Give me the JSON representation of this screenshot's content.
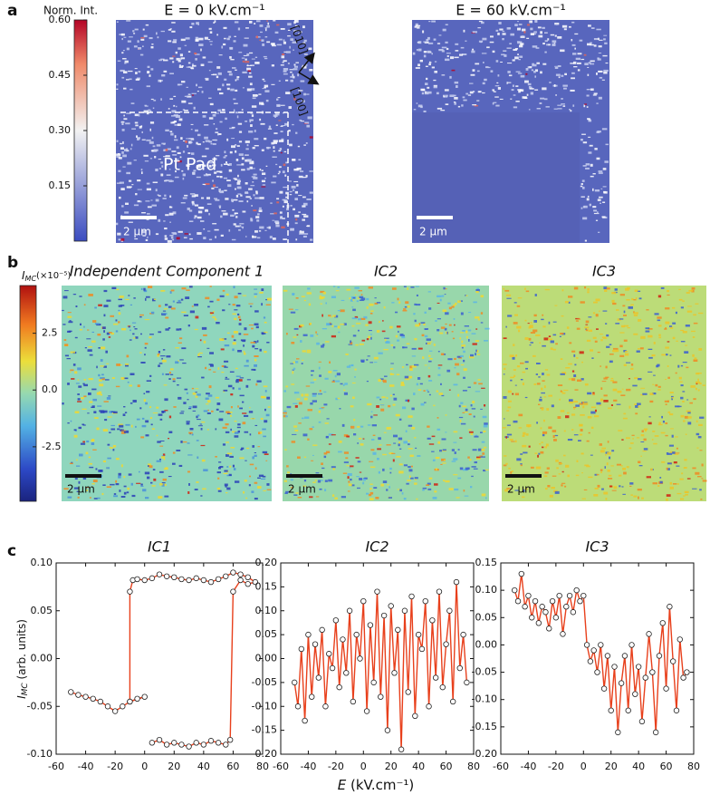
{
  "panel_labels": [
    "a",
    "b",
    "c"
  ],
  "panel_a": {
    "colorbar": {
      "title": "Norm. Int.",
      "lim": [
        0,
        0.6
      ],
      "ticks": [
        0.15,
        {
          "value": 0.3,
          "label": "0.30"
        },
        0.45,
        {
          "value": 0.6,
          "label": "0.60"
        }
      ]
    },
    "images": [
      {
        "title": "E = 0 kV.cm⁻¹",
        "scale_bar": "2 µm",
        "pad_label": "Pt Pad",
        "direction_1": "[010]",
        "direction_2": "[100]"
      },
      {
        "title": "E = 60 kV.cm⁻¹",
        "scale_bar": "2 µm"
      }
    ]
  },
  "panel_b": {
    "colorbar": {
      "symbol": "I",
      "subscript": "MC",
      "factor": "(×10⁻⁵)",
      "lim": [
        -4.9,
        4.6
      ],
      "ticks": [
        2.5,
        {
          "value": 0,
          "label": "0.0"
        },
        -2.5
      ]
    },
    "images": [
      {
        "title": "Independent Component 1",
        "scale_bar": "2 µm"
      },
      {
        "title": "IC2",
        "scale_bar": "2 µm"
      },
      {
        "title": "IC3",
        "scale_bar": "2 µm"
      }
    ]
  },
  "chart_data": [
    {
      "type": "line",
      "title": "IC1",
      "color": "#e8401c",
      "ylabel": {
        "symbol": "I",
        "subscript": "MC",
        "unit": " (arb. units)"
      },
      "x": [
        -50,
        -45,
        -40,
        -35,
        -30,
        -25,
        -20,
        -15,
        -10,
        -5,
        0,
        -10,
        -10,
        -8,
        -5,
        0,
        5,
        10,
        15,
        20,
        25,
        30,
        35,
        40,
        45,
        50,
        55,
        60,
        65,
        70,
        75,
        70,
        65,
        60,
        58,
        55,
        50,
        45,
        40,
        35,
        30,
        25,
        20,
        15,
        10,
        5
      ],
      "values": [
        -0.035,
        -0.038,
        -0.04,
        -0.042,
        -0.045,
        -0.05,
        -0.055,
        -0.05,
        -0.045,
        -0.042,
        -0.04,
        -0.045,
        0.07,
        0.082,
        0.083,
        0.082,
        0.084,
        0.088,
        0.086,
        0.085,
        0.083,
        0.082,
        0.084,
        0.082,
        0.08,
        0.083,
        0.086,
        0.09,
        0.088,
        0.085,
        0.08,
        0.078,
        0.082,
        0.07,
        -0.085,
        -0.09,
        -0.088,
        -0.086,
        -0.09,
        -0.088,
        -0.092,
        -0.09,
        -0.088,
        -0.09,
        -0.085,
        -0.088
      ],
      "xlim": [
        -60,
        80
      ],
      "xticks": [
        -60,
        -40,
        -20,
        0,
        20,
        40,
        60,
        80
      ],
      "ylim": [
        -0.1,
        0.1
      ],
      "yticks": [
        {
          "value": -0.1,
          "label": "-0.10"
        },
        {
          "value": -0.05,
          "label": "-0.05"
        },
        {
          "value": 0,
          "label": "0.00"
        },
        {
          "value": 0.05,
          "label": "0.05"
        },
        {
          "value": 0.1,
          "label": "0.10"
        }
      ]
    },
    {
      "type": "line",
      "title": "IC2",
      "color": "#e8401c",
      "xlabel": {
        "symbol": "E",
        "unit": " (kV.cm⁻¹)"
      },
      "x": [
        -50,
        -47.5,
        -45,
        -42.5,
        -40,
        -37.5,
        -35,
        -32.5,
        -30,
        -27.5,
        -25,
        -22.5,
        -20,
        -17.5,
        -15,
        -12.5,
        -10,
        -7.5,
        -5,
        -2.5,
        0,
        2.5,
        5,
        7.5,
        10,
        12.5,
        15,
        17.5,
        20,
        22.5,
        25,
        27.5,
        30,
        32.5,
        35,
        37.5,
        40,
        42.5,
        45,
        47.5,
        50,
        52.5,
        55,
        57.5,
        60,
        62.5,
        65,
        67.5,
        70,
        72.5,
        75
      ],
      "values": [
        -0.05,
        -0.1,
        0.02,
        -0.13,
        0.05,
        -0.08,
        0.03,
        -0.04,
        0.06,
        -0.1,
        0.01,
        -0.02,
        0.08,
        -0.06,
        0.04,
        -0.03,
        0.1,
        -0.09,
        0.05,
        0.0,
        0.12,
        -0.11,
        0.07,
        -0.05,
        0.14,
        -0.08,
        0.09,
        -0.15,
        0.11,
        -0.03,
        0.06,
        -0.19,
        0.1,
        -0.07,
        0.13,
        -0.12,
        0.05,
        0.02,
        0.12,
        -0.1,
        0.08,
        -0.04,
        0.14,
        -0.06,
        0.03,
        0.1,
        -0.09,
        0.16,
        -0.02,
        0.05,
        -0.05
      ],
      "xlim": [
        -60,
        80
      ],
      "xticks": [
        -60,
        -40,
        -20,
        0,
        20,
        40,
        60,
        80
      ],
      "ylim": [
        -0.2,
        0.2
      ],
      "yticks": [
        {
          "value": -0.2,
          "label": "-0.20"
        },
        -0.15,
        {
          "value": -0.1,
          "label": "-0.10"
        },
        -0.05,
        {
          "value": 0,
          "label": "0.00"
        },
        0.05,
        {
          "value": 0.1,
          "label": "0.10"
        },
        0.15,
        {
          "value": 0.2,
          "label": "0.20"
        }
      ]
    },
    {
      "type": "line",
      "title": "IC3",
      "color": "#e8401c",
      "x": [
        -50,
        -47.5,
        -45,
        -42.5,
        -40,
        -37.5,
        -35,
        -32.5,
        -30,
        -27.5,
        -25,
        -22.5,
        -20,
        -17.5,
        -15,
        -12.5,
        -10,
        -7.5,
        -5,
        -2.5,
        0,
        2.5,
        5,
        7.5,
        10,
        12.5,
        15,
        17.5,
        20,
        22.5,
        25,
        27.5,
        30,
        32.5,
        35,
        37.5,
        40,
        42.5,
        45,
        47.5,
        50,
        52.5,
        55,
        57.5,
        60,
        62.5,
        65,
        67.5,
        70,
        72.5,
        75
      ],
      "values": [
        0.1,
        0.08,
        0.13,
        0.07,
        0.09,
        0.05,
        0.08,
        0.04,
        0.07,
        0.06,
        0.03,
        0.08,
        0.05,
        0.09,
        0.02,
        0.07,
        0.09,
        0.06,
        0.1,
        0.08,
        0.09,
        0.0,
        -0.03,
        -0.01,
        -0.05,
        0.0,
        -0.08,
        -0.02,
        -0.12,
        -0.04,
        -0.16,
        -0.07,
        -0.02,
        -0.12,
        0.0,
        -0.09,
        -0.04,
        -0.14,
        -0.06,
        0.02,
        -0.05,
        -0.16,
        -0.02,
        0.04,
        -0.08,
        0.07,
        -0.03,
        -0.12,
        0.01,
        -0.06,
        -0.05
      ],
      "xlim": [
        -60,
        80
      ],
      "xticks": [
        -60,
        -40,
        -20,
        0,
        20,
        40,
        60,
        80
      ],
      "ylim": [
        -0.2,
        0.15
      ],
      "yticks": [
        {
          "value": -0.2,
          "label": "-0.20"
        },
        -0.15,
        {
          "value": -0.1,
          "label": "-0.10"
        },
        -0.05,
        {
          "value": 0,
          "label": "0.00"
        },
        0.05,
        {
          "value": 0.1,
          "label": "0.10"
        },
        0.15
      ]
    }
  ]
}
